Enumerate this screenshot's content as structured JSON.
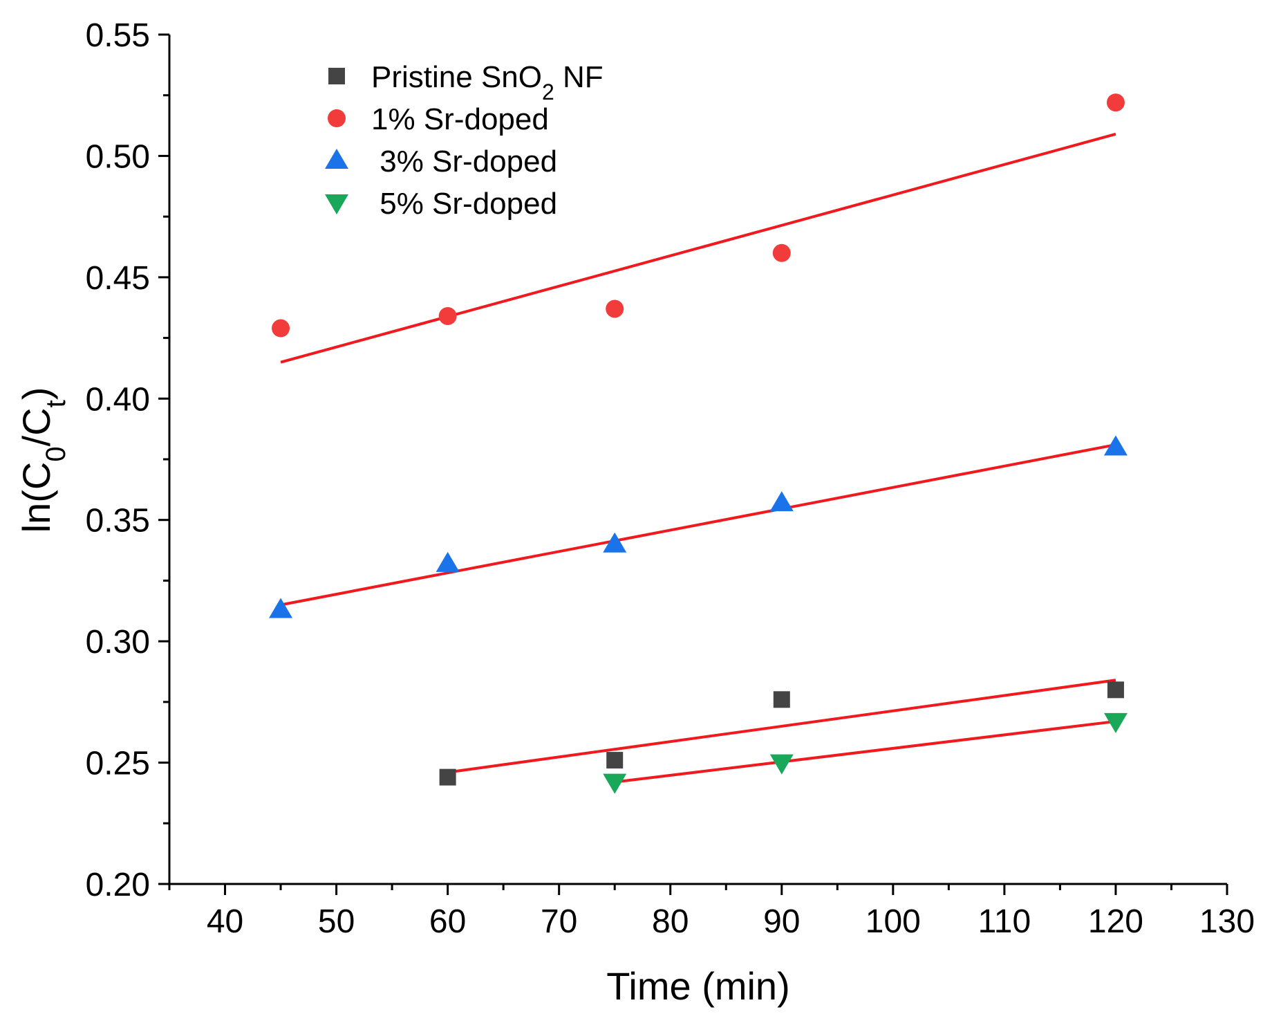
{
  "chart_data": {
    "type": "scatter",
    "xlabel": "Time (min)",
    "ylabel": "ln(C0/Ct)",
    "xlim": [
      35,
      130
    ],
    "ylim": [
      0.2,
      0.55
    ],
    "x_ticks": [
      40,
      50,
      60,
      70,
      80,
      90,
      100,
      110,
      120,
      130
    ],
    "y_ticks": [
      "0.20",
      "0.25",
      "0.30",
      "0.35",
      "0.40",
      "0.45",
      "0.50",
      "0.55"
    ],
    "grid": false,
    "legend_position": "top-left",
    "series": [
      {
        "name": "Pristine SnO2 NF",
        "legend_parts": {
          "pre": "Pristine SnO",
          "sub": "2",
          "post": " NF"
        },
        "marker": "square",
        "color": "#444444",
        "x": [
          60,
          75,
          90,
          120
        ],
        "y": [
          0.244,
          0.251,
          0.276,
          0.28
        ],
        "fit": {
          "x": [
            60,
            120
          ],
          "y": [
            0.246,
            0.284
          ]
        }
      },
      {
        "name": "1% Sr-doped",
        "marker": "circle",
        "color": "#f23c3c",
        "x": [
          45,
          60,
          75,
          90,
          120
        ],
        "y": [
          0.429,
          0.434,
          0.437,
          0.46,
          0.522
        ],
        "fit": {
          "x": [
            45,
            120
          ],
          "y": [
            0.415,
            0.509
          ]
        }
      },
      {
        "name": " 3% Sr-doped",
        "marker": "triangle-up",
        "color": "#1a73e8",
        "x": [
          45,
          60,
          75,
          90,
          120
        ],
        "y": [
          0.313,
          0.332,
          0.34,
          0.357,
          0.38
        ],
        "fit": {
          "x": [
            45,
            120
          ],
          "y": [
            0.315,
            0.381
          ]
        }
      },
      {
        "name": " 5% Sr-doped",
        "marker": "triangle-down",
        "color": "#19a85a",
        "x": [
          75,
          90,
          120
        ],
        "y": [
          0.242,
          0.25,
          0.267
        ],
        "fit": {
          "x": [
            75,
            120
          ],
          "y": [
            0.242,
            0.267
          ]
        }
      }
    ]
  }
}
